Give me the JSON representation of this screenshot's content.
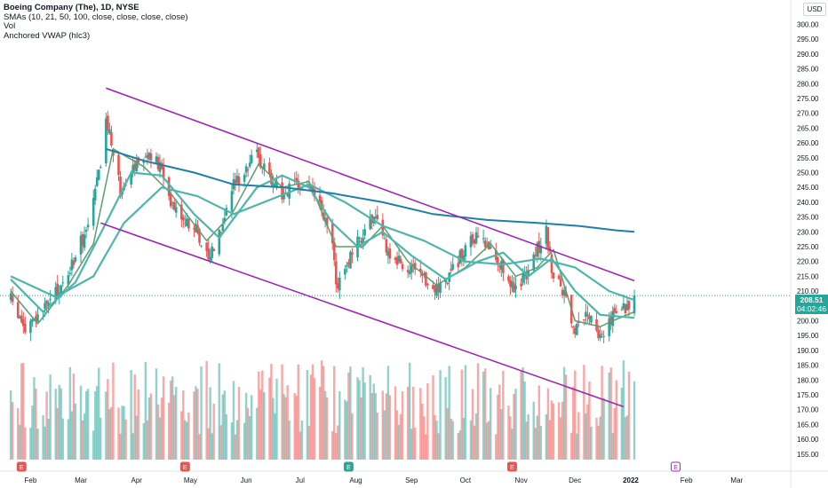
{
  "legend": {
    "title": "Boeing Company (The), 1D, NYSE",
    "sma": "SMAs (10, 21, 50, 100, close, close, close, close)",
    "vol": "Vol",
    "vwap": "Anchored VWAP (hlc3)"
  },
  "currency_button": "USD",
  "last_price": {
    "value": "208.51",
    "countdown": "04:02:46"
  },
  "event_marker": "E",
  "colors": {
    "up": "#26a69a",
    "down": "#ef5350",
    "channel": "#9c27b0",
    "sma_fast": "#5a9e6f",
    "sma_mid": "#4db6ac",
    "sma_slow": "#1f7fa6",
    "earnings": "#ef5350",
    "dividend": "#26a69a",
    "future_event": "#9c27b0"
  },
  "chart_data": {
    "type": "candlestick",
    "y_ticks": [
      "155.00",
      "160.00",
      "165.00",
      "170.00",
      "175.00",
      "180.00",
      "185.00",
      "190.00",
      "195.00",
      "200.00",
      "205.00",
      "210.00",
      "215.00",
      "220.00",
      "225.00",
      "230.00",
      "235.00",
      "240.00",
      "245.00",
      "250.00",
      "255.00",
      "260.00",
      "265.00",
      "270.00",
      "275.00",
      "280.00",
      "285.00",
      "290.00",
      "295.00",
      "300.00"
    ],
    "ylim": [
      152,
      305
    ],
    "x_ticks": [
      "Feb",
      "Mar",
      "Apr",
      "May",
      "Jun",
      "Jul",
      "Aug",
      "Sep",
      "Oct",
      "Nov",
      "Dec",
      "2022",
      "Feb",
      "Mar"
    ],
    "x_ticks_bold": [
      "2022"
    ],
    "price_anchors": [
      [
        "2021-01-21",
        207
      ],
      [
        "2021-01-29",
        197
      ],
      [
        "2021-02-05",
        201
      ],
      [
        "2021-02-12",
        207
      ],
      [
        "2021-02-19",
        212
      ],
      [
        "2021-02-26",
        222
      ],
      [
        "2021-03-05",
        232
      ],
      [
        "2021-03-12",
        252
      ],
      [
        "2021-03-15",
        268
      ],
      [
        "2021-03-19",
        258
      ],
      [
        "2021-03-23",
        244
      ],
      [
        "2021-03-29",
        252
      ],
      [
        "2021-04-06",
        256
      ],
      [
        "2021-04-14",
        252
      ],
      [
        "2021-04-20",
        241
      ],
      [
        "2021-04-28",
        234
      ],
      [
        "2021-05-05",
        230
      ],
      [
        "2021-05-11",
        221
      ],
      [
        "2021-05-18",
        232
      ],
      [
        "2021-05-25",
        246
      ],
      [
        "2021-06-01",
        252
      ],
      [
        "2021-06-07",
        256
      ],
      [
        "2021-06-14",
        249
      ],
      [
        "2021-06-21",
        243
      ],
      [
        "2021-06-28",
        245
      ],
      [
        "2021-07-06",
        246
      ],
      [
        "2021-07-12",
        238
      ],
      [
        "2021-07-19",
        226
      ],
      [
        "2021-07-21",
        212
      ],
      [
        "2021-07-26",
        218
      ],
      [
        "2021-08-02",
        226
      ],
      [
        "2021-08-09",
        235
      ],
      [
        "2021-08-13",
        232
      ],
      [
        "2021-08-20",
        222
      ],
      [
        "2021-08-30",
        218
      ],
      [
        "2021-09-08",
        213
      ],
      [
        "2021-09-16",
        211
      ],
      [
        "2021-09-24",
        217
      ],
      [
        "2021-10-01",
        225
      ],
      [
        "2021-10-08",
        228
      ],
      [
        "2021-10-15",
        224
      ],
      [
        "2021-10-22",
        218
      ],
      [
        "2021-10-29",
        210
      ],
      [
        "2021-11-03",
        215
      ],
      [
        "2021-11-09",
        223
      ],
      [
        "2021-11-15",
        230
      ],
      [
        "2021-11-19",
        214
      ],
      [
        "2021-11-24",
        211
      ],
      [
        "2021-11-30",
        196
      ],
      [
        "2021-12-03",
        197
      ],
      [
        "2021-12-08",
        203
      ],
      [
        "2021-12-14",
        194
      ],
      [
        "2021-12-17",
        197
      ],
      [
        "2021-12-23",
        203
      ],
      [
        "2021-12-30",
        205
      ],
      [
        "2022-01-03",
        208.51
      ]
    ],
    "sma_series": [
      {
        "name": "SMA 10",
        "points": [
          [
            "2021-01-21",
            210
          ],
          [
            "2021-02-05",
            199
          ],
          [
            "2021-02-22",
            212
          ],
          [
            "2021-03-08",
            226
          ],
          [
            "2021-03-19",
            258
          ],
          [
            "2021-04-05",
            252
          ],
          [
            "2021-04-20",
            243
          ],
          [
            "2021-05-10",
            227
          ],
          [
            "2021-05-24",
            236
          ],
          [
            "2021-06-08",
            253
          ],
          [
            "2021-06-21",
            245
          ],
          [
            "2021-07-06",
            247
          ],
          [
            "2021-07-21",
            225
          ],
          [
            "2021-08-05",
            225
          ],
          [
            "2021-08-16",
            232
          ],
          [
            "2021-08-30",
            220
          ],
          [
            "2021-09-15",
            212
          ],
          [
            "2021-10-01",
            218
          ],
          [
            "2021-10-15",
            226
          ],
          [
            "2021-10-29",
            215
          ],
          [
            "2021-11-10",
            218
          ],
          [
            "2021-11-19",
            224
          ],
          [
            "2021-12-01",
            200
          ],
          [
            "2021-12-15",
            198
          ],
          [
            "2021-12-22",
            200
          ],
          [
            "2022-01-03",
            203
          ]
        ]
      },
      {
        "name": "SMA 21",
        "points": [
          [
            "2021-01-21",
            214
          ],
          [
            "2021-02-08",
            203
          ],
          [
            "2021-02-26",
            213
          ],
          [
            "2021-03-15",
            233
          ],
          [
            "2021-03-29",
            250
          ],
          [
            "2021-04-15",
            249
          ],
          [
            "2021-05-03",
            236
          ],
          [
            "2021-05-17",
            228
          ],
          [
            "2021-06-07",
            245
          ],
          [
            "2021-06-21",
            249
          ],
          [
            "2021-07-06",
            245
          ],
          [
            "2021-07-19",
            233
          ],
          [
            "2021-08-02",
            225
          ],
          [
            "2021-08-16",
            230
          ],
          [
            "2021-09-01",
            222
          ],
          [
            "2021-09-20",
            214
          ],
          [
            "2021-10-08",
            220
          ],
          [
            "2021-10-22",
            223
          ],
          [
            "2021-11-05",
            215
          ],
          [
            "2021-11-18",
            221
          ],
          [
            "2021-12-01",
            210
          ],
          [
            "2021-12-15",
            202
          ],
          [
            "2022-01-03",
            201
          ]
        ]
      },
      {
        "name": "SMA 50",
        "points": [
          [
            "2021-01-21",
            215
          ],
          [
            "2021-02-15",
            208
          ],
          [
            "2021-03-08",
            215
          ],
          [
            "2021-03-25",
            233
          ],
          [
            "2021-04-15",
            245
          ],
          [
            "2021-05-05",
            242
          ],
          [
            "2021-05-25",
            236
          ],
          [
            "2021-06-15",
            241
          ],
          [
            "2021-07-06",
            246
          ],
          [
            "2021-07-26",
            240
          ],
          [
            "2021-08-16",
            232
          ],
          [
            "2021-09-08",
            227
          ],
          [
            "2021-10-01",
            220
          ],
          [
            "2021-10-22",
            219
          ],
          [
            "2021-11-12",
            221
          ],
          [
            "2021-12-01",
            218
          ],
          [
            "2021-12-20",
            210
          ],
          [
            "2022-01-03",
            207
          ]
        ]
      },
      {
        "name": "SMA 100",
        "points": [
          [
            "2021-03-15",
            258
          ],
          [
            "2021-04-05",
            254
          ],
          [
            "2021-05-03",
            250
          ],
          [
            "2021-05-25",
            246
          ],
          [
            "2021-06-22",
            245
          ],
          [
            "2021-07-19",
            243
          ],
          [
            "2021-08-16",
            240
          ],
          [
            "2021-09-13",
            236
          ],
          [
            "2021-10-13",
            234
          ],
          [
            "2021-11-10",
            233
          ],
          [
            "2021-12-03",
            232
          ],
          [
            "2021-12-24",
            230.5
          ],
          [
            "2022-01-03",
            230
          ]
        ]
      }
    ],
    "channel_lines": [
      {
        "from": [
          "2021-03-15",
          278.5
        ],
        "to": [
          "2022-01-03",
          213.5
        ]
      },
      {
        "from": [
          "2021-03-12",
          233
        ],
        "to": [
          "2021-12-28",
          171
        ]
      }
    ],
    "events": [
      {
        "label": "E",
        "date": "2021-01-27",
        "kind": "earnings"
      },
      {
        "label": "E",
        "date": "2021-04-28",
        "kind": "earnings"
      },
      {
        "label": "E",
        "date": "2021-07-28",
        "kind": "dividend"
      },
      {
        "label": "E",
        "date": "2021-10-27",
        "kind": "earnings"
      },
      {
        "label": "E",
        "date": "2022-01-26",
        "kind": "future_event"
      }
    ]
  }
}
